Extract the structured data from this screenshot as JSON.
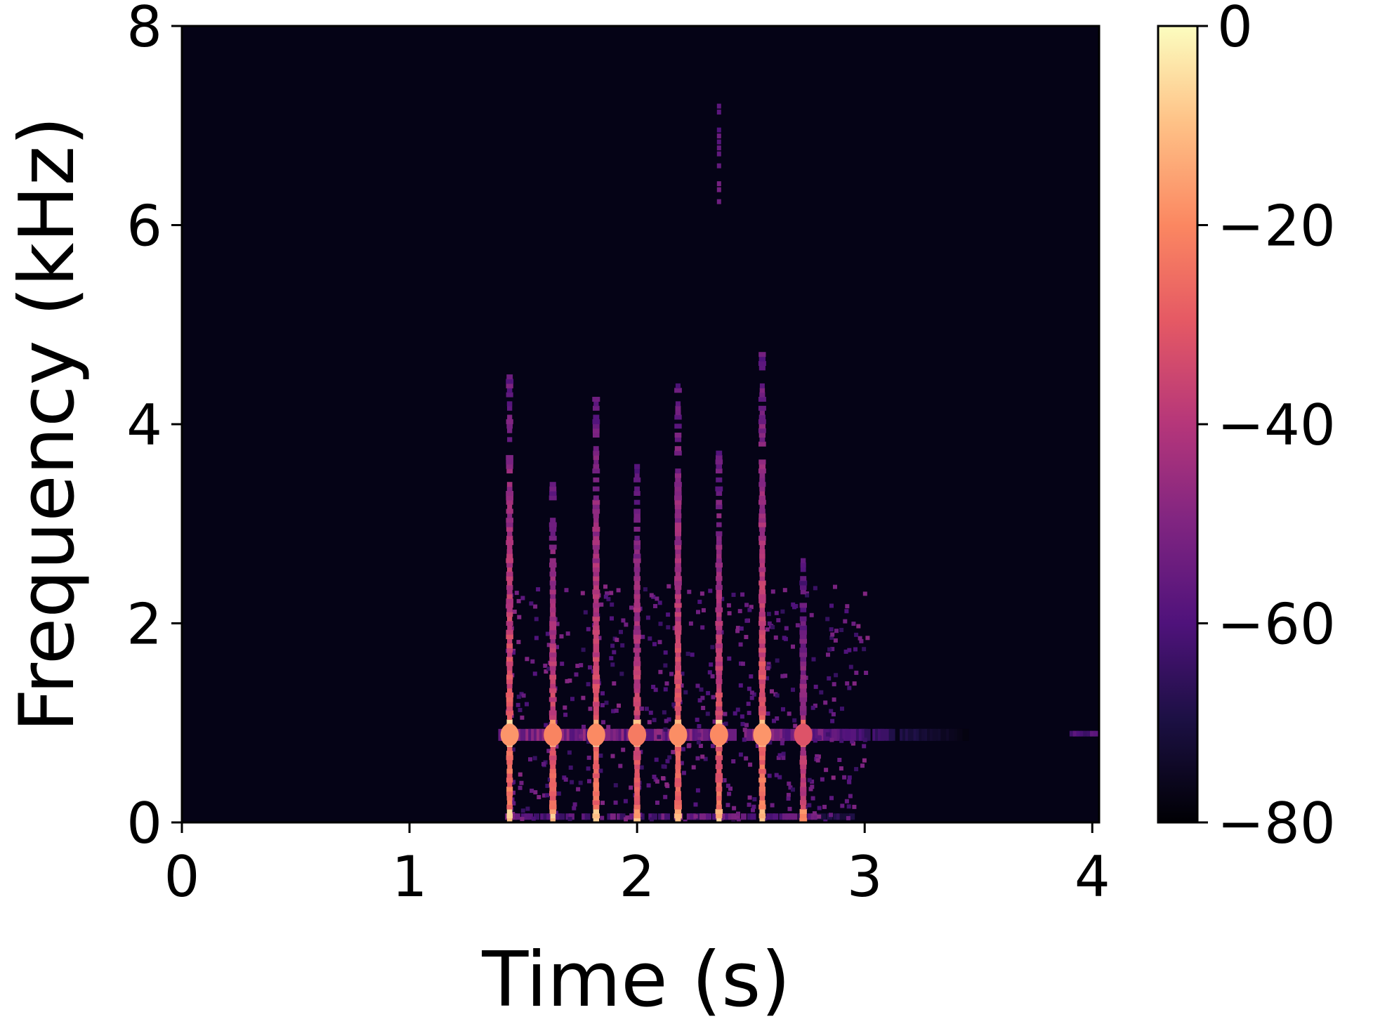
{
  "chart_data": {
    "type": "heatmap",
    "title": "",
    "xlabel": "Time (s)",
    "ylabel": "Frequency (kHz)",
    "xlim": [
      0,
      4.03
    ],
    "ylim": [
      0,
      8
    ],
    "x_ticks": [
      "0",
      "1",
      "2",
      "3",
      "4"
    ],
    "y_ticks": [
      "0",
      "2",
      "4",
      "6",
      "8"
    ],
    "colormap": "magma",
    "background_color": "#050316",
    "colorbar": {
      "range": [
        -80,
        0
      ],
      "ticks": [
        "0",
        "−20",
        "−40",
        "−60",
        "−80"
      ]
    },
    "harmonic_band_khz": 0.88,
    "clicks": [
      {
        "t": 1.44,
        "top_khz": 4.5,
        "strength": 1.0
      },
      {
        "t": 1.63,
        "top_khz": 3.4,
        "strength": 0.95
      },
      {
        "t": 1.82,
        "top_khz": 4.3,
        "strength": 0.97
      },
      {
        "t": 2.0,
        "top_khz": 3.6,
        "strength": 0.92
      },
      {
        "t": 2.18,
        "top_khz": 4.4,
        "strength": 0.98
      },
      {
        "t": 2.36,
        "top_khz": 3.7,
        "strength": 0.97
      },
      {
        "t": 2.55,
        "top_khz": 4.7,
        "strength": 1.0
      },
      {
        "t": 2.73,
        "top_khz": 2.7,
        "strength": 0.78
      }
    ]
  }
}
